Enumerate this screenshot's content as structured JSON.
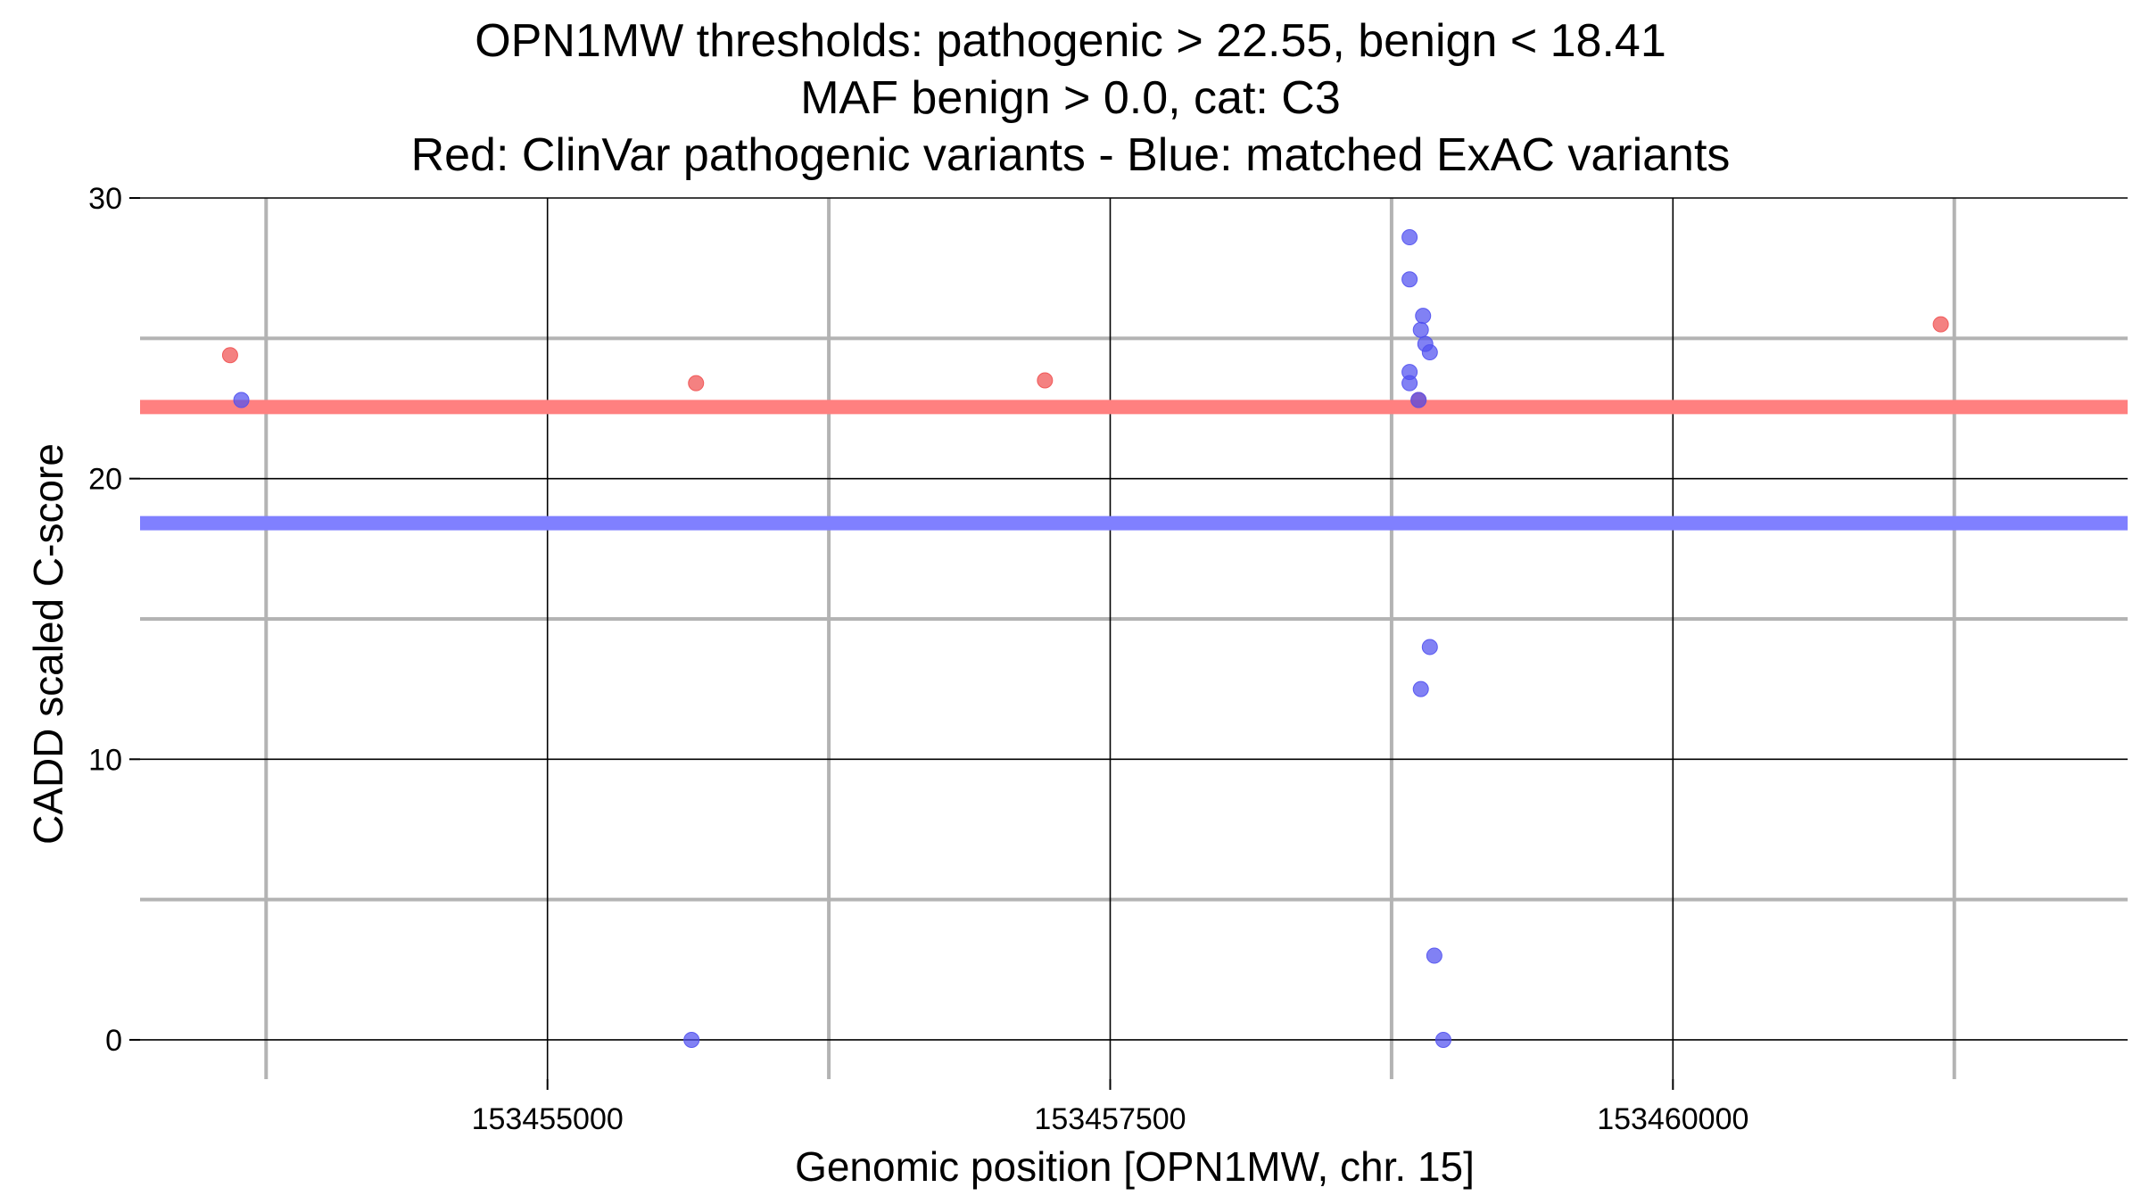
{
  "chart_data": {
    "type": "scatter",
    "title_lines": [
      "OPN1MW thresholds: pathogenic > 22.55, benign < 18.41",
      "MAF benign > 0.0, cat: C3",
      "Red: ClinVar pathogenic variants - Blue: matched ExAC variants"
    ],
    "xlabel": "Genomic position [OPN1MW, chr. 15]",
    "ylabel": "CADD scaled C-score",
    "xlim": [
      153453190,
      153462020
    ],
    "ylim": [
      -1.4,
      30
    ],
    "x_ticks": [
      153455000,
      153457500,
      153460000
    ],
    "x_tick_labels": [
      "153455000",
      "153457500",
      "153460000"
    ],
    "x_minor_gridlines": [
      153453750,
      153456250,
      153458750,
      153461250
    ],
    "y_ticks": [
      0,
      10,
      20,
      30
    ],
    "y_tick_labels": [
      "0",
      "10",
      "20",
      "30"
    ],
    "y_minor_gridlines": [
      5,
      15,
      25
    ],
    "grid": true,
    "thresholds": [
      {
        "name": "pathogenic",
        "value": 22.55,
        "color": "#ff8080"
      },
      {
        "name": "benign",
        "value": 18.41,
        "color": "#8080ff"
      }
    ],
    "series": [
      {
        "color": "#f05050",
        "points": [
          {
            "x": 153453590,
            "y": 24.4
          },
          {
            "x": 153455660,
            "y": 23.4
          },
          {
            "x": 153457210,
            "y": 23.5
          },
          {
            "x": 153458870,
            "y": 22.8
          },
          {
            "x": 153461190,
            "y": 25.5
          }
        ]
      },
      {
        "color": "#5050f0",
        "points": [
          {
            "x": 153453640,
            "y": 22.8
          },
          {
            "x": 153455640,
            "y": 0.0
          },
          {
            "x": 153458830,
            "y": 28.6
          },
          {
            "x": 153458830,
            "y": 27.1
          },
          {
            "x": 153458890,
            "y": 25.8
          },
          {
            "x": 153458880,
            "y": 25.3
          },
          {
            "x": 153458900,
            "y": 24.8
          },
          {
            "x": 153458920,
            "y": 24.5
          },
          {
            "x": 153458830,
            "y": 23.8
          },
          {
            "x": 153458830,
            "y": 23.4
          },
          {
            "x": 153458870,
            "y": 22.8
          },
          {
            "x": 153458920,
            "y": 14.0
          },
          {
            "x": 153458880,
            "y": 12.5
          },
          {
            "x": 153458940,
            "y": 3.0
          },
          {
            "x": 153458980,
            "y": 0.0
          }
        ]
      }
    ]
  }
}
